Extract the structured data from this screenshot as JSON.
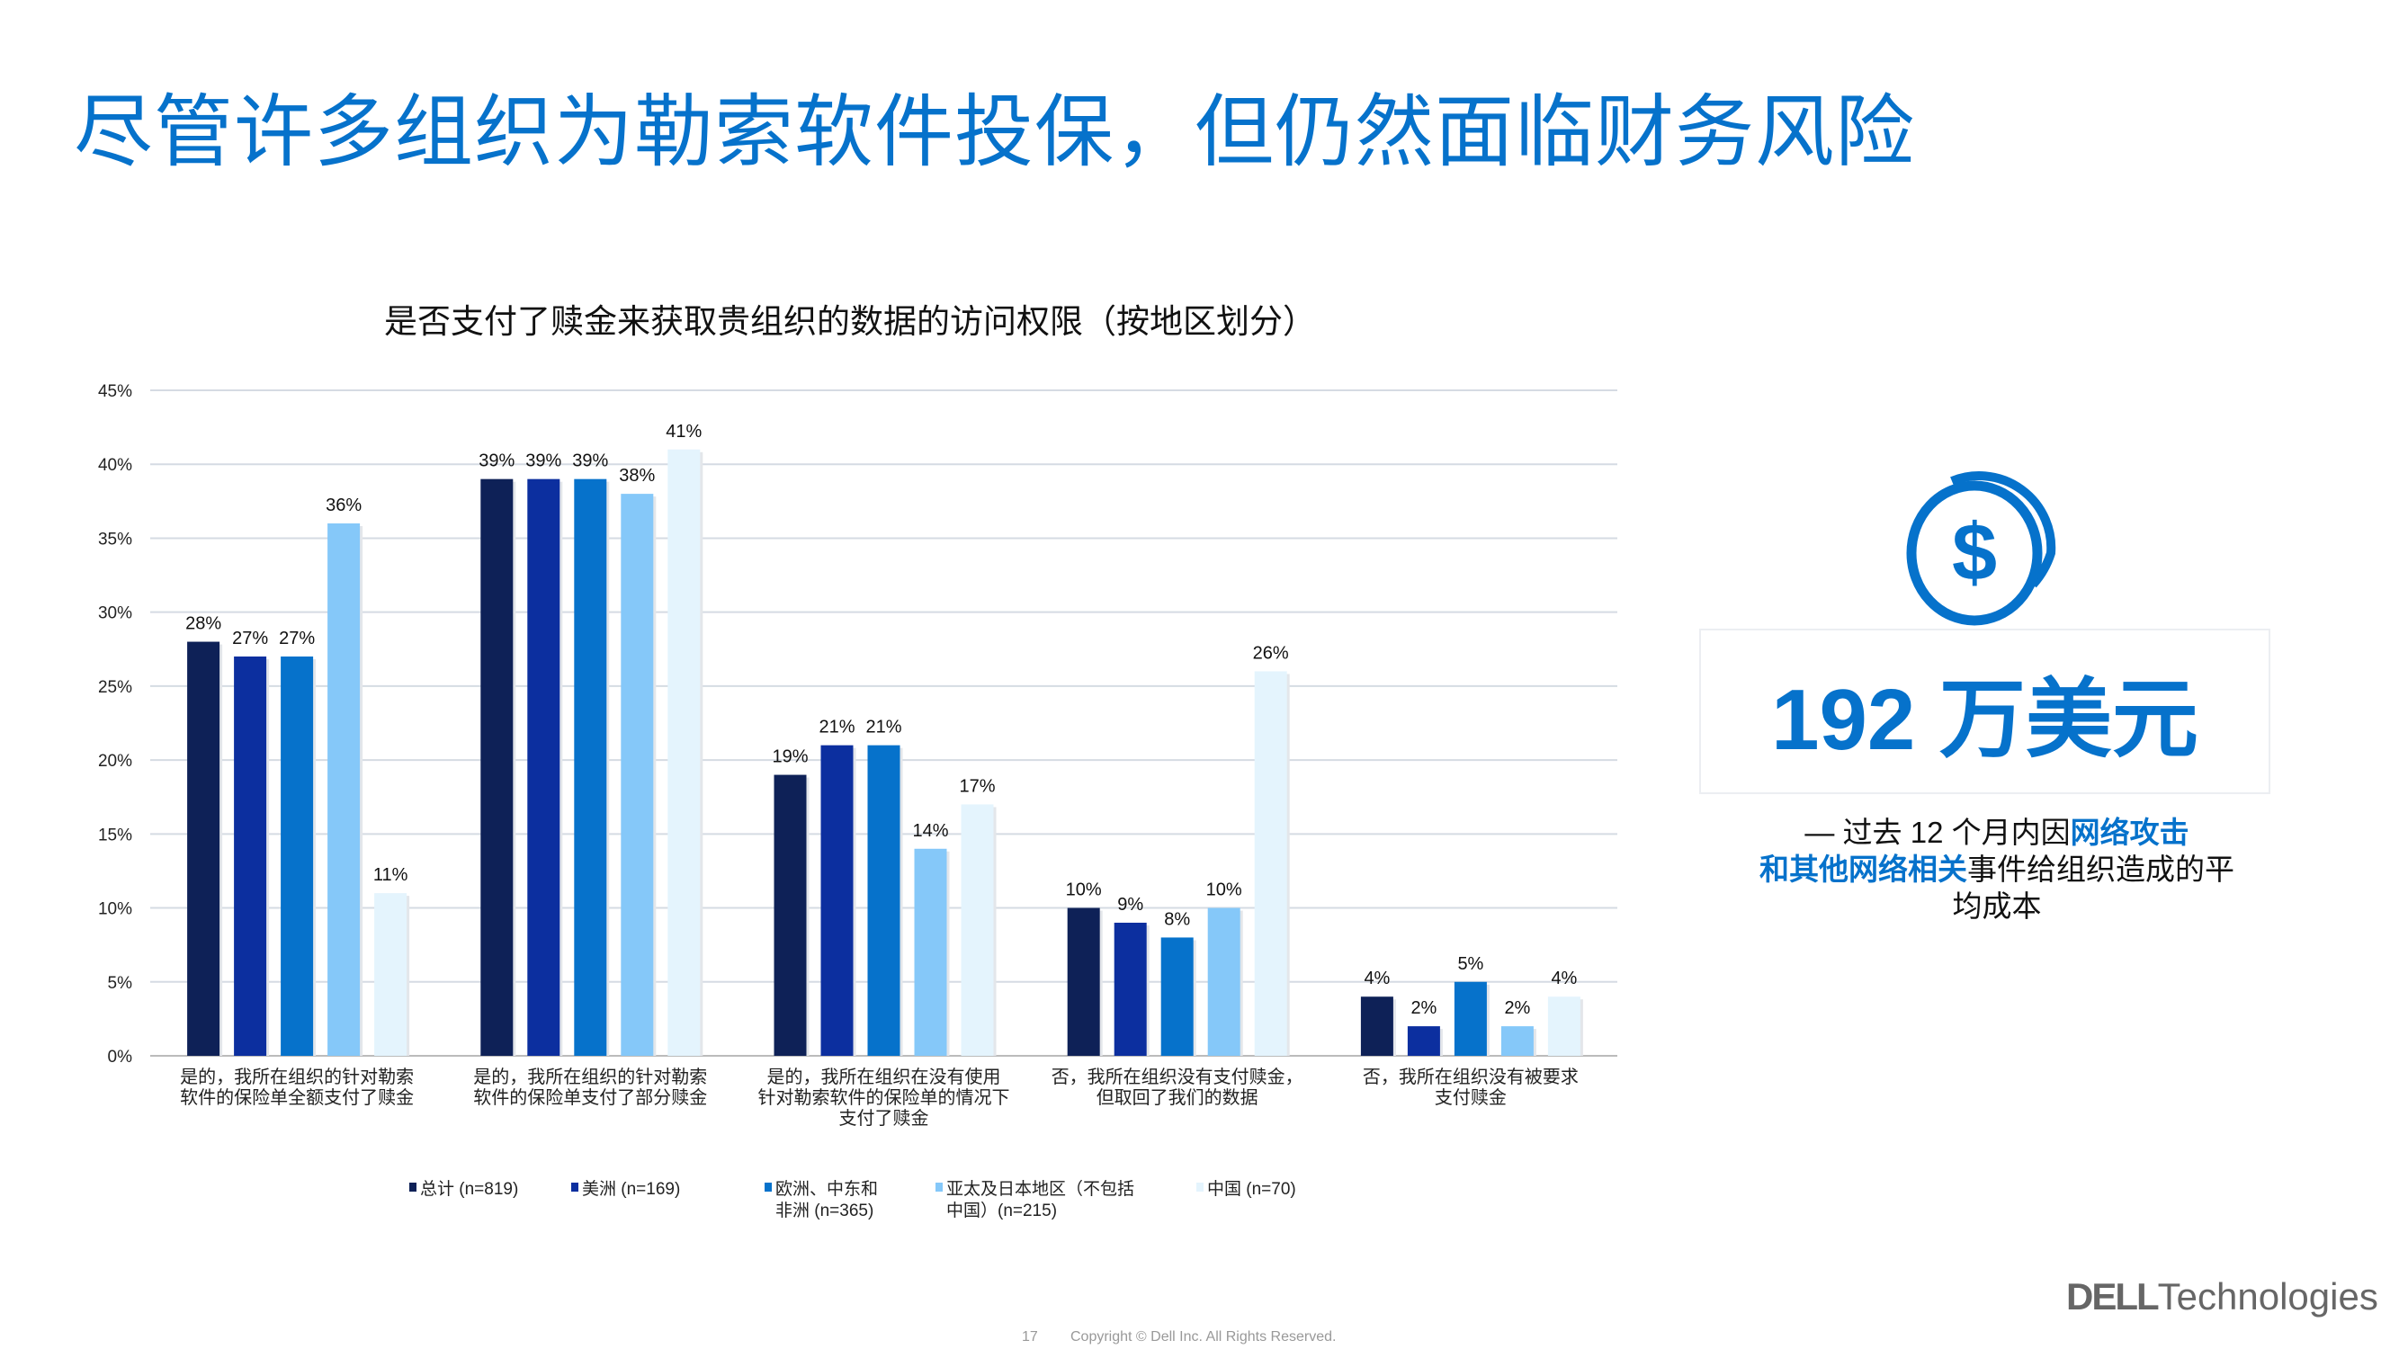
{
  "title": "尽管许多组织为勒索软件投保，但仍然面临财务风险",
  "highlight": {
    "amount": "192 万美元",
    "caption_prefix": "— 过去 12 个月内因",
    "caption_bold1": "网络攻击",
    "caption_bold2": "和其他网络相关",
    "caption_suffix": "事件给组织造成的平均成本"
  },
  "footer": {
    "page": "17",
    "copyright": "Copyright © Dell Inc. All Rights Reserved."
  },
  "logo": {
    "brand": "DELL",
    "text": "Technologies"
  },
  "colors": {
    "accent": "#0672cb"
  },
  "chart_data": {
    "type": "bar",
    "title": "是否支付了赎金来获取贵组织的数据的访问权限（按地区划分）",
    "ylim": [
      0,
      45
    ],
    "yticks": [
      "0%",
      "5%",
      "10%",
      "15%",
      "20%",
      "25%",
      "30%",
      "35%",
      "40%",
      "45%"
    ],
    "categories": [
      [
        "是的，我所在组织的针对勒索",
        "软件的保险单全额支付了赎金"
      ],
      [
        "是的，我所在组织的针对勒索",
        "软件的保险单支付了部分赎金"
      ],
      [
        "是的，我所在组织在没有使用",
        "针对勒索软件的保险单的情况下",
        "支付了赎金"
      ],
      [
        "否，我所在组织没有支付赎金，",
        "但取回了我们的数据"
      ],
      [
        "否，我所在组织没有被要求",
        "支付赎金"
      ]
    ],
    "series": [
      {
        "name": "总计 (n=819)",
        "color": "#0e2157",
        "values": [
          28,
          39,
          19,
          10,
          4
        ]
      },
      {
        "name": "美洲 (n=169)",
        "color": "#0c2f9f",
        "values": [
          27,
          39,
          21,
          9,
          2
        ]
      },
      {
        "name": "欧洲、中东和非洲 (n=365)",
        "color": "#0672cb",
        "values": [
          27,
          39,
          21,
          8,
          5
        ]
      },
      {
        "name": "亚太及日本地区（不包括中国）(n=215)",
        "color": "#85c8f9",
        "values": [
          36,
          38,
          14,
          10,
          2
        ]
      },
      {
        "name": "中国 (n=70)",
        "color": "#e4f4fd",
        "values": [
          11,
          41,
          17,
          26,
          4
        ]
      }
    ],
    "legend_lines": [
      [
        "总计 (n=819)"
      ],
      [
        "美洲 (n=169)"
      ],
      [
        "欧洲、中东和",
        "非洲 (n=365)"
      ],
      [
        "亚太及日本地区（不包括",
        "中国）(n=215)"
      ],
      [
        "中国 (n=70)"
      ]
    ],
    "legend_position": "bottom",
    "grid": true
  }
}
